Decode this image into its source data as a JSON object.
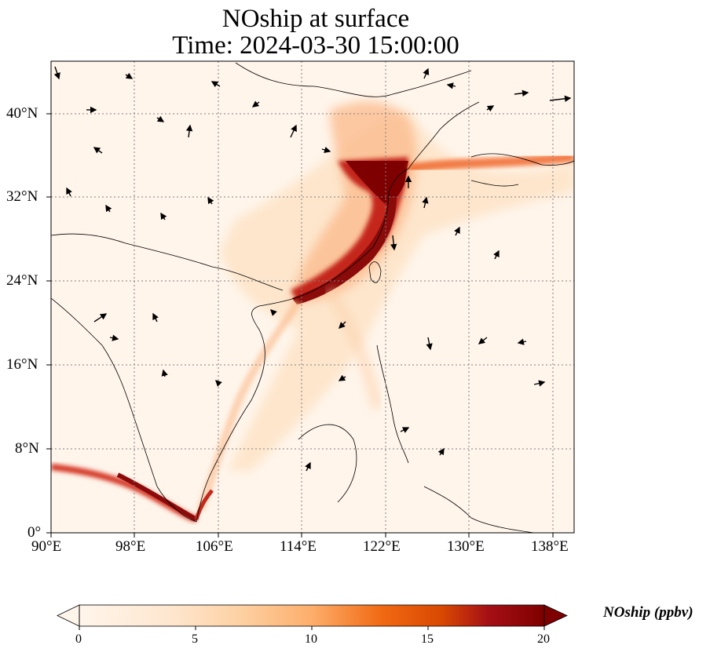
{
  "title_line1": "NOship at surface",
  "title_line2": "Time: 2024-03-30 15:00:00",
  "lon_ticks": [
    "90°E",
    "98°E",
    "106°E",
    "114°E",
    "122°E",
    "130°E",
    "138°E"
  ],
  "lat_ticks": [
    "40°N",
    "32°N",
    "24°N",
    "16°N",
    "8°N",
    "0°"
  ],
  "colorbar": {
    "label": "NOship (ppbv)",
    "ticks": [
      "0",
      "5",
      "10",
      "15",
      "20"
    ],
    "min": 0,
    "max": 20,
    "extend": "both",
    "colormap": [
      "#fff5eb",
      "#fdd49e",
      "#fdae6b",
      "#f16913",
      "#d94801",
      "#a50f15",
      "#7f0000"
    ]
  },
  "map": {
    "lon_range": [
      90,
      140
    ],
    "lat_range": [
      0,
      45
    ],
    "gridlines": "dotted",
    "background_color": "#fff5eb",
    "high_conc_color": "#7f0000"
  }
}
